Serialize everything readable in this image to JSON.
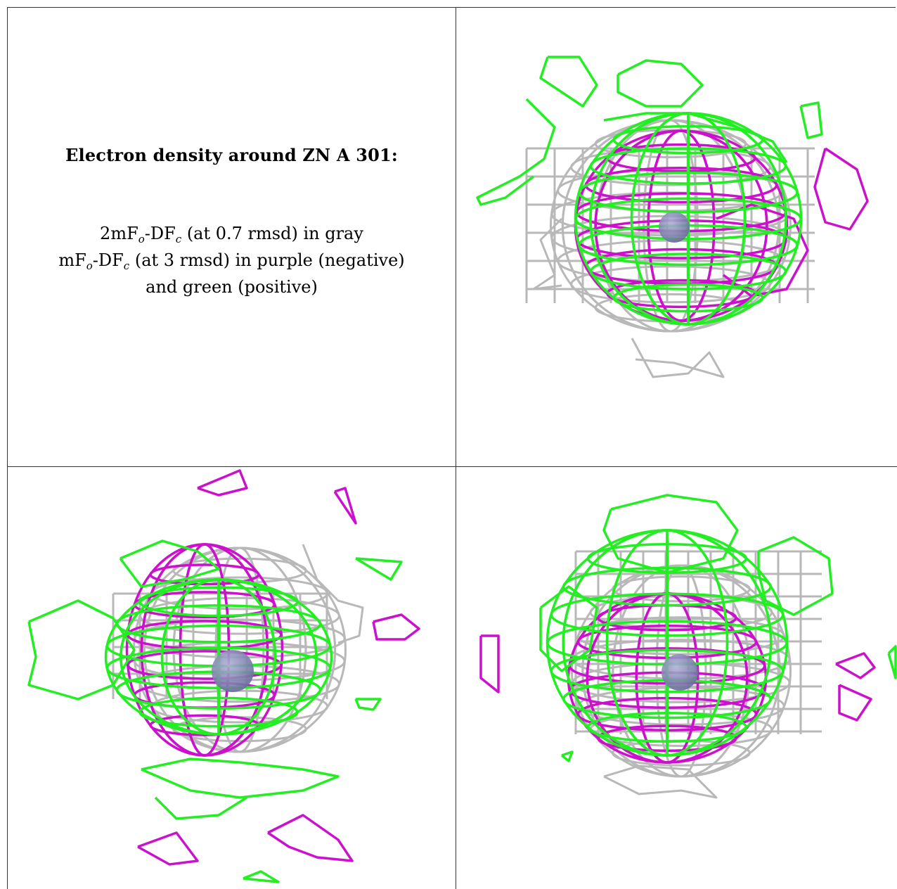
{
  "legend": {
    "title": "Electron density around ZN A 301:",
    "line1": {
      "pre": "2mF",
      "sub1": "o",
      "mid": "-DF",
      "sub2": "c",
      "post": " (at 0.7 rmsd) in gray"
    },
    "line2": {
      "pre": "mF",
      "sub1": "o",
      "mid": "-DF",
      "sub2": "c",
      "post": " (at 3 rmsd) in purple (negative)"
    },
    "line3": "and green (positive)"
  },
  "colors": {
    "map_2fofc": "#b8b8b8",
    "map_fofc_negative": "#cc11cc",
    "map_fofc_positive": "#22ee22",
    "zinc_atom": "#6a6f9c",
    "grid_line": "#333333"
  },
  "views": [
    {
      "name": "view-top-right",
      "atom": "zinc"
    },
    {
      "name": "view-bottom-left",
      "atom": "zinc"
    },
    {
      "name": "view-bottom-right",
      "atom": "zinc"
    }
  ]
}
